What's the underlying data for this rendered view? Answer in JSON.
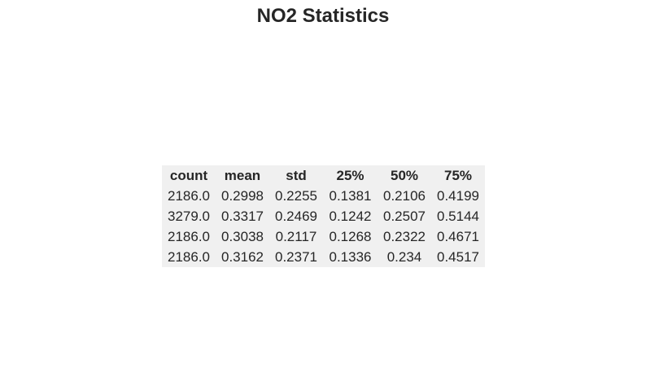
{
  "chart_data": {
    "type": "table",
    "title": "NO2 Statistics",
    "columns": [
      "count",
      "mean",
      "std",
      "25%",
      "50%",
      "75%"
    ],
    "rows": [
      [
        "2186.0",
        "0.2998",
        "0.2255",
        "0.1381",
        "0.2106",
        "0.4199"
      ],
      [
        "3279.0",
        "0.3317",
        "0.2469",
        "0.1242",
        "0.2507",
        "0.5144"
      ],
      [
        "2186.0",
        "0.3038",
        "0.2117",
        "0.1268",
        "0.2322",
        "0.4671"
      ],
      [
        "2186.0",
        "0.3162",
        "0.2371",
        "0.1336",
        "0.234",
        "0.4517"
      ]
    ]
  }
}
